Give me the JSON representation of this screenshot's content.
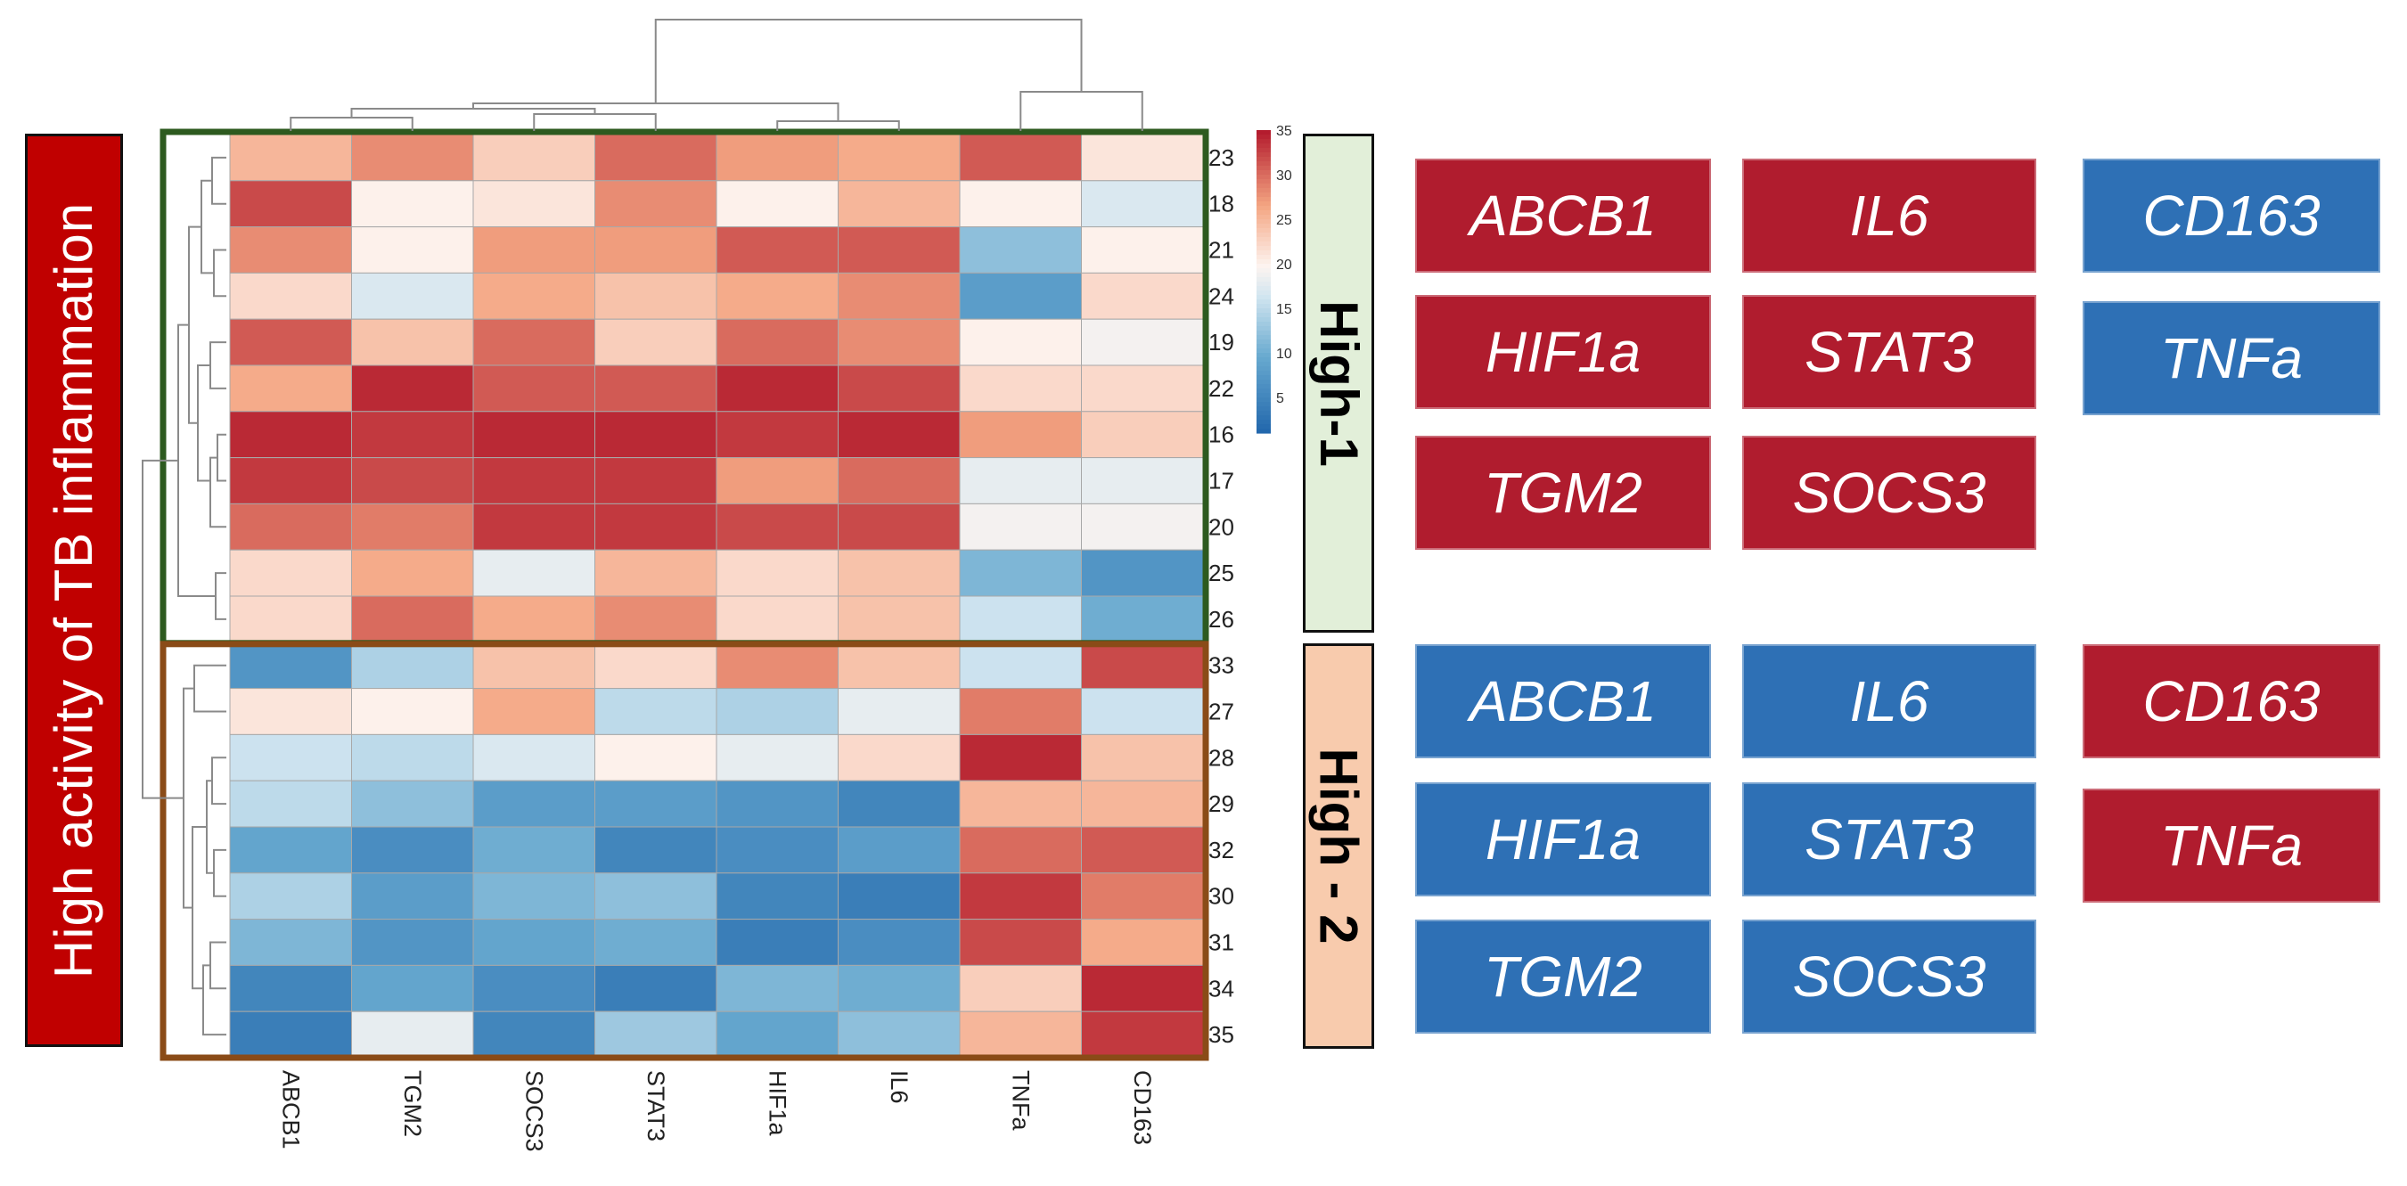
{
  "colors": {
    "red": "#b01c2e",
    "blue": "#2e70b5",
    "high1_border": "#2d5a1f",
    "high2_border": "#8a4b17"
  },
  "side_title": "High activity of TB inflammation",
  "group_labels": {
    "high1": "High-1",
    "high2": "High - 2"
  },
  "high1_genes": [
    {
      "name": "ABCB1",
      "color": "red"
    },
    {
      "name": "IL6",
      "color": "red"
    },
    {
      "name": "CD163",
      "color": "blue"
    },
    {
      "name": "HIF1a",
      "color": "red"
    },
    {
      "name": "STAT3",
      "color": "red"
    },
    {
      "name": "TNFa",
      "color": "blue"
    },
    {
      "name": "TGM2",
      "color": "red"
    },
    {
      "name": "SOCS3",
      "color": "red"
    }
  ],
  "high2_genes": [
    {
      "name": "ABCB1",
      "color": "blue"
    },
    {
      "name": "IL6",
      "color": "blue"
    },
    {
      "name": "CD163",
      "color": "red"
    },
    {
      "name": "HIF1a",
      "color": "blue"
    },
    {
      "name": "STAT3",
      "color": "blue"
    },
    {
      "name": "TNFa",
      "color": "red"
    },
    {
      "name": "TGM2",
      "color": "blue"
    },
    {
      "name": "SOCS3",
      "color": "blue"
    }
  ],
  "chart_data": {
    "type": "heatmap",
    "title": "",
    "columns": [
      "ABCB1",
      "TGM2",
      "SOCS3",
      "STAT3",
      "HIF1a",
      "IL6",
      "TNFa",
      "CD163"
    ],
    "rows": [
      "23",
      "18",
      "21",
      "24",
      "19",
      "22",
      "16",
      "17",
      "20",
      "25",
      "26",
      "33",
      "27",
      "28",
      "29",
      "32",
      "30",
      "31",
      "34",
      "35"
    ],
    "values": [
      [
        25,
        28,
        23,
        30,
        27,
        26,
        31,
        21
      ],
      [
        32,
        20,
        21,
        28,
        20,
        25,
        20,
        17
      ],
      [
        28,
        20,
        27,
        27,
        31,
        31,
        12,
        20
      ],
      [
        22,
        17,
        26,
        24,
        26,
        28,
        8,
        22
      ],
      [
        31,
        24,
        30,
        23,
        30,
        28,
        20,
        19
      ],
      [
        26,
        34,
        31,
        31,
        34,
        32,
        22,
        22
      ],
      [
        34,
        33,
        34,
        34,
        33,
        34,
        27,
        23
      ],
      [
        33,
        32,
        33,
        33,
        27,
        30,
        18,
        18
      ],
      [
        30,
        29,
        33,
        33,
        32,
        32,
        19,
        19
      ],
      [
        22,
        26,
        18,
        25,
        22,
        24,
        11,
        7
      ],
      [
        22,
        30,
        26,
        28,
        22,
        24,
        16,
        10
      ],
      [
        7,
        14,
        24,
        22,
        28,
        24,
        16,
        32
      ],
      [
        21,
        20,
        26,
        15,
        14,
        18,
        29,
        16
      ],
      [
        16,
        15,
        17,
        20,
        18,
        22,
        34,
        24
      ],
      [
        15,
        12,
        8,
        8,
        7,
        5,
        25,
        25
      ],
      [
        9,
        6,
        10,
        5,
        6,
        8,
        30,
        31
      ],
      [
        14,
        8,
        11,
        12,
        5,
        4,
        33,
        29
      ],
      [
        11,
        7,
        9,
        10,
        4,
        6,
        32,
        26
      ],
      [
        5,
        9,
        6,
        4,
        11,
        10,
        23,
        34
      ],
      [
        4,
        18,
        5,
        13,
        9,
        12,
        25,
        33
      ]
    ],
    "color_scale": {
      "min": 1,
      "max": 35,
      "ticks": [
        5,
        10,
        15,
        20,
        25,
        30,
        35
      ]
    },
    "row_groups": [
      {
        "name": "High-1",
        "rows": [
          "23",
          "18",
          "21",
          "24",
          "19",
          "22",
          "16",
          "17",
          "20",
          "25",
          "26"
        ]
      },
      {
        "name": "High - 2",
        "rows": [
          "33",
          "27",
          "28",
          "29",
          "32",
          "30",
          "31",
          "34",
          "35"
        ]
      }
    ],
    "col_dendrogram": {
      "order": [
        "ABCB1",
        "TGM2",
        "SOCS3",
        "STAT3",
        "HIF1a",
        "IL6",
        "TNFa",
        "CD163"
      ]
    },
    "row_dendrogram": {
      "order": [
        "23",
        "18",
        "21",
        "24",
        "19",
        "22",
        "16",
        "17",
        "20",
        "25",
        "26",
        "33",
        "27",
        "28",
        "29",
        "32",
        "30",
        "31",
        "34",
        "35"
      ]
    }
  }
}
